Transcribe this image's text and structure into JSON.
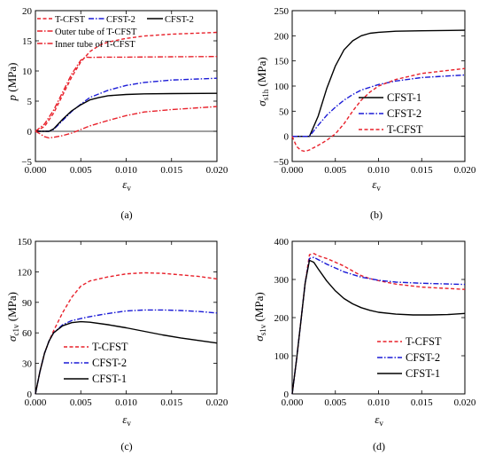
{
  "chart_data": [
    {
      "type": "line",
      "id": "a",
      "caption": "(a)",
      "ylabel": {
        "main": "p",
        "unit": " (MPa)"
      },
      "xlabel": {
        "main": "ε",
        "sub": "v"
      },
      "xlim": [
        0,
        0.02
      ],
      "ylim": [
        -5,
        20
      ],
      "xticks": [
        "0.000",
        "0.005",
        "0.010",
        "0.015",
        "0.020"
      ],
      "yticks": [
        "−5",
        "0",
        "5",
        "10",
        "15",
        "20"
      ],
      "xtick_values": [
        0,
        0.005,
        0.01,
        0.015,
        0.02
      ],
      "ytick_values": [
        -5,
        0,
        5,
        10,
        15,
        20
      ],
      "zero_line": true,
      "legend": {
        "placement": "top-left-inside",
        "columns": "3+2"
      },
      "series": [
        {
          "name": "T-CFST",
          "color": "#e8202a",
          "dash": "dash",
          "x": [
            0,
            0.001,
            0.002,
            0.003,
            0.004,
            0.005,
            0.006,
            0.007,
            0.008,
            0.01,
            0.012,
            0.015,
            0.02
          ],
          "y": [
            0,
            0.8,
            3,
            6,
            9,
            11.5,
            13.2,
            14.2,
            14.8,
            15.4,
            15.8,
            16.1,
            16.4
          ]
        },
        {
          "name": "CFST-2",
          "color": "#1a1ad6",
          "dash": "dashdot",
          "x": [
            0,
            0.001,
            0.0015,
            0.002,
            0.003,
            0.004,
            0.005,
            0.006,
            0.008,
            0.01,
            0.012,
            0.015,
            0.02
          ],
          "y": [
            0,
            0,
            0,
            0.3,
            1.8,
            3.3,
            4.5,
            5.6,
            6.8,
            7.6,
            8.1,
            8.5,
            8.8
          ]
        },
        {
          "name": "CFST-2",
          "color": "#000000",
          "dash": "solid",
          "x": [
            0,
            0.001,
            0.0015,
            0.002,
            0.003,
            0.004,
            0.005,
            0.006,
            0.007,
            0.008,
            0.01,
            0.012,
            0.015,
            0.02
          ],
          "y": [
            0,
            0,
            0,
            0.4,
            2,
            3.4,
            4.4,
            5.2,
            5.6,
            5.9,
            6.1,
            6.2,
            6.25,
            6.3
          ]
        },
        {
          "name": "Outer tube of T-CFST",
          "color": "#e8202a",
          "dash": "dashdot",
          "x": [
            0,
            0.001,
            0.002,
            0.003,
            0.004,
            0.005,
            0.0055,
            0.006,
            0.008,
            0.01,
            0.015,
            0.02
          ],
          "y": [
            0,
            1.2,
            3.5,
            6.5,
            9.5,
            11.8,
            12.3,
            12.25,
            12.3,
            12.3,
            12.35,
            12.4
          ]
        },
        {
          "name": "Inner tube of T-CFST",
          "color": "#e8202a",
          "dash": "dashdot",
          "x": [
            0,
            0.0005,
            0.001,
            0.0015,
            0.002,
            0.003,
            0.004,
            0.005,
            0.006,
            0.008,
            0.01,
            0.012,
            0.015,
            0.02
          ],
          "y": [
            0,
            -0.4,
            -0.9,
            -1.1,
            -1,
            -0.7,
            -0.3,
            0.3,
            0.9,
            1.8,
            2.6,
            3.2,
            3.6,
            4.1
          ]
        }
      ]
    },
    {
      "type": "line",
      "id": "b",
      "caption": "(b)",
      "ylabel": {
        "main": "σ",
        "sub": "s1h",
        "unit": " (MPa)"
      },
      "xlabel": {
        "main": "ε",
        "sub": "v"
      },
      "xlim": [
        0,
        0.02
      ],
      "ylim": [
        -50,
        250
      ],
      "xticks": [
        "0.000",
        "0.005",
        "0.010",
        "0.015",
        "0.020"
      ],
      "yticks": [
        "−50",
        "0",
        "50",
        "100",
        "150",
        "200",
        "250"
      ],
      "xtick_values": [
        0,
        0.005,
        0.01,
        0.015,
        0.02
      ],
      "ytick_values": [
        -50,
        0,
        50,
        100,
        150,
        200,
        250
      ],
      "zero_line": true,
      "legend": {
        "placement": "bottom-right-inside"
      },
      "series": [
        {
          "name": "CFST-1",
          "color": "#000000",
          "dash": "solid",
          "x": [
            0,
            0.0015,
            0.002,
            0.003,
            0.004,
            0.005,
            0.006,
            0.007,
            0.008,
            0.009,
            0.01,
            0.012,
            0.015,
            0.02
          ],
          "y": [
            0,
            0,
            0,
            40,
            95,
            140,
            172,
            190,
            200,
            205,
            207,
            209,
            210,
            211
          ]
        },
        {
          "name": "CFST-2",
          "color": "#1a1ad6",
          "dash": "dashdot",
          "x": [
            0,
            0.0015,
            0.002,
            0.003,
            0.004,
            0.005,
            0.006,
            0.007,
            0.008,
            0.01,
            0.012,
            0.015,
            0.02
          ],
          "y": [
            0,
            0,
            0,
            22,
            42,
            58,
            72,
            83,
            92,
            103,
            110,
            117,
            122
          ]
        },
        {
          "name": "T-CFST",
          "color": "#e8202a",
          "dash": "dash",
          "x": [
            0,
            0.0005,
            0.001,
            0.0015,
            0.002,
            0.003,
            0.004,
            0.005,
            0.006,
            0.007,
            0.008,
            0.009,
            0.01,
            0.012,
            0.015,
            0.02
          ],
          "y": [
            0,
            -20,
            -28,
            -30,
            -27,
            -18,
            -8,
            5,
            25,
            50,
            72,
            88,
            100,
            113,
            125,
            135
          ]
        }
      ]
    },
    {
      "type": "line",
      "id": "c",
      "caption": "(c)",
      "ylabel": {
        "main": "σ",
        "sub": "c1v",
        "unit": " (MPa)"
      },
      "xlabel": {
        "main": "ε",
        "sub": "v"
      },
      "xlim": [
        0,
        0.02
      ],
      "ylim": [
        0,
        150
      ],
      "xticks": [
        "0.000",
        "0.005",
        "0.010",
        "0.015",
        "0.020"
      ],
      "yticks": [
        "0",
        "30",
        "60",
        "90",
        "120",
        "150"
      ],
      "xtick_values": [
        0,
        0.005,
        0.01,
        0.015,
        0.02
      ],
      "ytick_values": [
        0,
        30,
        60,
        90,
        120,
        150
      ],
      "zero_line": false,
      "legend": {
        "placement": "bottom-left-inside"
      },
      "series": [
        {
          "name": "T-CFST",
          "color": "#e8202a",
          "dash": "dash",
          "x": [
            0,
            0.0005,
            0.001,
            0.0015,
            0.002,
            0.003,
            0.004,
            0.005,
            0.006,
            0.007,
            0.008,
            0.01,
            0.012,
            0.014,
            0.016,
            0.018,
            0.02
          ],
          "y": [
            0,
            22,
            40,
            52,
            62,
            80,
            95,
            106,
            111,
            113,
            115,
            118,
            119,
            118.5,
            117,
            115.5,
            113
          ]
        },
        {
          "name": "CFST-2",
          "color": "#1a1ad6",
          "dash": "dashdot",
          "x": [
            0,
            0.0005,
            0.001,
            0.0015,
            0.002,
            0.003,
            0.004,
            0.005,
            0.006,
            0.008,
            0.01,
            0.012,
            0.014,
            0.016,
            0.018,
            0.02
          ],
          "y": [
            0,
            22,
            40,
            52,
            60,
            68,
            72,
            74,
            76,
            79,
            81.5,
            82.5,
            82.5,
            82,
            81,
            79.5
          ]
        },
        {
          "name": "CFST-1",
          "color": "#000000",
          "dash": "solid",
          "x": [
            0,
            0.0005,
            0.001,
            0.0015,
            0.002,
            0.003,
            0.004,
            0.005,
            0.006,
            0.008,
            0.01,
            0.012,
            0.014,
            0.016,
            0.018,
            0.02
          ],
          "y": [
            0,
            22,
            40,
            52,
            60,
            67,
            70,
            71,
            70.5,
            68,
            65,
            61.5,
            58,
            55,
            52.5,
            50
          ]
        }
      ]
    },
    {
      "type": "line",
      "id": "d",
      "caption": "(d)",
      "ylabel": {
        "main": "σ",
        "sub": "s1v",
        "unit": " (MPa)"
      },
      "xlabel": {
        "main": "ε",
        "sub": "v"
      },
      "xlim": [
        0,
        0.02
      ],
      "ylim": [
        0,
        400
      ],
      "xticks": [
        "0.000",
        "0.005",
        "0.010",
        "0.015",
        "0.020"
      ],
      "yticks": [
        "0",
        "100",
        "200",
        "300",
        "400"
      ],
      "xtick_values": [
        0,
        0.005,
        0.01,
        0.015,
        0.02
      ],
      "ytick_values": [
        0,
        100,
        200,
        300,
        400
      ],
      "zero_line": false,
      "legend": {
        "placement": "bottom-right-inside"
      },
      "series": [
        {
          "name": "T-CFST",
          "color": "#e8202a",
          "dash": "dash",
          "x": [
            0,
            0.0005,
            0.001,
            0.0015,
            0.002,
            0.0025,
            0.003,
            0.004,
            0.005,
            0.006,
            0.007,
            0.008,
            0.009,
            0.01,
            0.012,
            0.015,
            0.02
          ],
          "y": [
            0,
            90,
            190,
            290,
            365,
            368,
            362,
            355,
            345,
            335,
            322,
            310,
            302,
            297,
            288,
            280,
            274
          ]
        },
        {
          "name": "CFST-2",
          "color": "#1a1ad6",
          "dash": "dashdot",
          "x": [
            0,
            0.0005,
            0.001,
            0.0015,
            0.002,
            0.0025,
            0.003,
            0.004,
            0.005,
            0.006,
            0.008,
            0.01,
            0.012,
            0.015,
            0.02
          ],
          "y": [
            0,
            90,
            190,
            290,
            355,
            358,
            352,
            340,
            330,
            320,
            306,
            298,
            293,
            290,
            287
          ]
        },
        {
          "name": "CFST-1",
          "color": "#000000",
          "dash": "solid",
          "x": [
            0,
            0.0005,
            0.001,
            0.0015,
            0.002,
            0.0025,
            0.003,
            0.004,
            0.005,
            0.006,
            0.007,
            0.008,
            0.009,
            0.01,
            0.012,
            0.014,
            0.016,
            0.018,
            0.02
          ],
          "y": [
            0,
            90,
            190,
            290,
            350,
            345,
            328,
            296,
            270,
            250,
            236,
            226,
            219,
            214,
            209,
            207,
            207,
            208,
            211
          ]
        }
      ]
    }
  ]
}
